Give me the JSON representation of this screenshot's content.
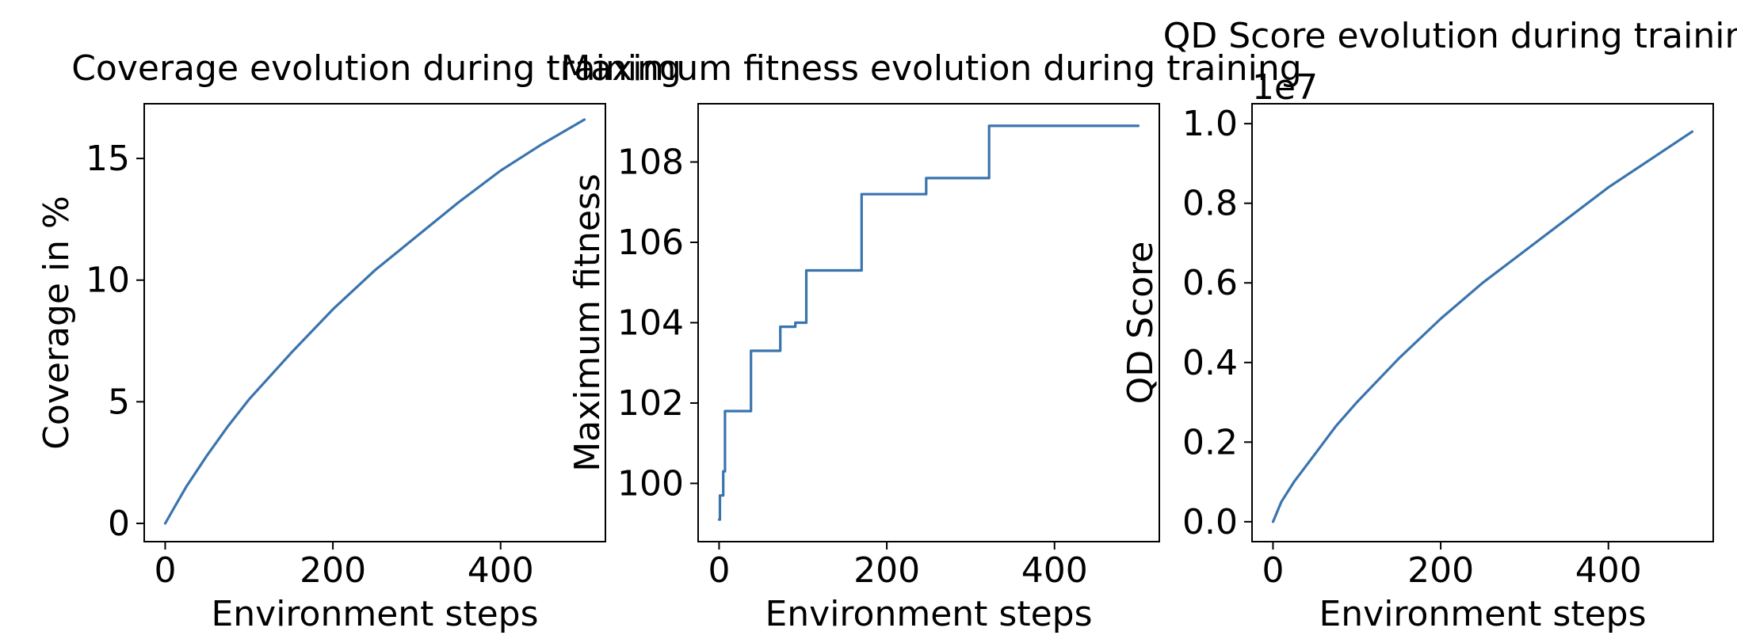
{
  "colors": {
    "line": "#3a74ad",
    "axes": "#000000",
    "background": "#ffffff"
  },
  "chart_data": [
    {
      "type": "line",
      "title": "Coverage evolution during training",
      "xlabel": "Environment steps",
      "ylabel": "Coverage in %",
      "xlim": [
        -25,
        525
      ],
      "ylim": [
        -0.75,
        17.25
      ],
      "xticks": [
        0,
        200,
        400
      ],
      "yticks": [
        0,
        5,
        10,
        15
      ],
      "x": [
        0,
        10,
        25,
        50,
        75,
        100,
        150,
        200,
        250,
        300,
        350,
        400,
        450,
        500
      ],
      "values": [
        0.0,
        0.6,
        1.5,
        2.8,
        4.0,
        5.1,
        7.0,
        8.8,
        10.4,
        11.8,
        13.2,
        14.5,
        15.6,
        16.6
      ]
    },
    {
      "type": "line",
      "title": "Maximum fitness evolution during training",
      "xlabel": "Environment steps",
      "ylabel": "Maximum fitness",
      "xlim": [
        -25,
        525
      ],
      "ylim": [
        98.55,
        109.45
      ],
      "xticks": [
        0,
        200,
        400
      ],
      "yticks": [
        100,
        102,
        104,
        106,
        108
      ],
      "x": [
        0,
        1,
        1,
        5,
        5,
        7,
        7,
        38,
        38,
        73,
        73,
        91,
        91,
        104,
        104,
        170,
        170,
        247,
        247,
        322,
        322,
        500
      ],
      "values": [
        99.1,
        99.1,
        99.7,
        99.7,
        100.3,
        100.3,
        101.8,
        101.8,
        103.3,
        103.3,
        103.9,
        103.9,
        104.0,
        104.0,
        105.3,
        105.3,
        107.2,
        107.2,
        107.6,
        107.6,
        108.9,
        108.9
      ]
    },
    {
      "type": "line",
      "title": "QD Score evolution during training",
      "xlabel": "Environment steps",
      "ylabel": "QD Score",
      "offset_text": "1e7",
      "xlim": [
        -25,
        525
      ],
      "ylim": [
        -0.05,
        1.05
      ],
      "xticks": [
        0,
        200,
        400
      ],
      "yticks": [
        0.0,
        0.2,
        0.4,
        0.6,
        0.8,
        1.0
      ],
      "ytick_labels": [
        "0.0",
        "0.2",
        "0.4",
        "0.6",
        "0.8",
        "1.0"
      ],
      "x": [
        0,
        10,
        25,
        50,
        75,
        100,
        150,
        200,
        250,
        300,
        350,
        400,
        450,
        500
      ],
      "values": [
        0.0,
        0.05,
        0.1,
        0.17,
        0.24,
        0.3,
        0.41,
        0.51,
        0.6,
        0.68,
        0.76,
        0.84,
        0.91,
        0.98
      ]
    }
  ]
}
